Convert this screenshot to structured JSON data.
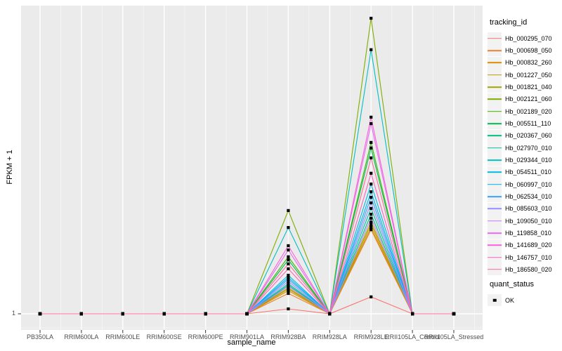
{
  "figure": {
    "y_axis_title": "FPKM + 1",
    "x_axis_title": "sample_name",
    "y_tick_label": "1",
    "legend": {
      "tracking_title": "tracking_id",
      "quant_title": "quant_status",
      "quant_items": [
        {
          "label": "OK",
          "marker": "black-square"
        }
      ]
    }
  },
  "colors": {
    "panel_bg": "#EBEBEB",
    "grid_major": "#FFFFFF",
    "grid_minor": "rgba(255,255,255,0.55)",
    "tick_mark": "#333333",
    "tick_text": "#4D4D4D",
    "axis_text": "#000000",
    "legend_key_bg": "#F2F2F2",
    "point": "#000000"
  },
  "chart_data": {
    "type": "line",
    "title": "",
    "xlabel": "sample_name",
    "ylabel": "FPKM + 1",
    "legend_position": "right",
    "grid": true,
    "point_marker": "small-black-square",
    "x_categories": [
      "PB350LA",
      "RRIM600LA",
      "RRIM600LE",
      "RRIM600SE",
      "RRIM600PE",
      "RRIM901LA",
      "RRIM928BA",
      "RRIM928LA",
      "RRIM928LE",
      "RRII105LA_Control",
      "RRII105LA_Stressed"
    ],
    "y_axis_note": "Only the tick 'FPKM+1 = 1' is labeled; series values below are estimated as fraction of panel height above the '1' baseline (0 = 1, 1 = panel top).",
    "visible_y_ticks": [
      "1"
    ],
    "quant_status_of_all_points": "OK",
    "series": [
      {
        "name": "Hb_000295_070",
        "color": "#F8766D",
        "values": [
          0,
          0,
          0,
          0,
          0,
          0,
          0.016,
          0,
          0.055,
          0,
          0
        ]
      },
      {
        "name": "Hb_000698_050",
        "color": "#EA8331",
        "values": [
          0,
          0,
          0,
          0,
          0,
          0,
          0.066,
          0,
          0.273,
          0,
          0
        ]
      },
      {
        "name": "Hb_000832_260",
        "color": "#D89000",
        "values": [
          0,
          0,
          0,
          0,
          0,
          0,
          0.075,
          0,
          0.28,
          0,
          0
        ]
      },
      {
        "name": "Hb_001227_050",
        "color": "#C09B00",
        "values": [
          0,
          0,
          0,
          0,
          0,
          0,
          0.08,
          0,
          0.289,
          0,
          0
        ]
      },
      {
        "name": "Hb_001821_040",
        "color": "#A3A500",
        "values": [
          0,
          0,
          0,
          0,
          0,
          0,
          0.084,
          0,
          0.298,
          0,
          0
        ]
      },
      {
        "name": "Hb_002121_060",
        "color": "#7CAE00",
        "values": [
          0,
          0,
          0,
          0,
          0,
          0,
          0.335,
          0,
          0.959,
          0,
          0
        ]
      },
      {
        "name": "Hb_002189_020",
        "color": "#39B600",
        "values": [
          0,
          0,
          0,
          0,
          0,
          0,
          0.185,
          0,
          0.556,
          0,
          0
        ]
      },
      {
        "name": "Hb_005511_110",
        "color": "#00BB4E",
        "values": [
          0,
          0,
          0,
          0,
          0,
          0,
          0.175,
          0,
          0.538,
          0,
          0
        ]
      },
      {
        "name": "Hb_020367_060",
        "color": "#00BF7D",
        "values": [
          0,
          0,
          0,
          0,
          0,
          0,
          0.093,
          0,
          0.323,
          0,
          0
        ]
      },
      {
        "name": "Hb_027970_010",
        "color": "#00C1A3",
        "values": [
          0,
          0,
          0,
          0,
          0,
          0,
          0.098,
          0,
          0.342,
          0,
          0
        ]
      },
      {
        "name": "Hb_029344_010",
        "color": "#00BFC4",
        "values": [
          0,
          0,
          0,
          0,
          0,
          0,
          0.28,
          0,
          0.857,
          0,
          0
        ]
      },
      {
        "name": "Hb_054511_010",
        "color": "#00BAE0",
        "values": [
          0,
          0,
          0,
          0,
          0,
          0,
          0.125,
          0,
          0.421,
          0,
          0
        ]
      },
      {
        "name": "Hb_060997_010",
        "color": "#00B0F6",
        "values": [
          0,
          0,
          0,
          0,
          0,
          0,
          0.118,
          0,
          0.396,
          0,
          0
        ]
      },
      {
        "name": "Hb_062534_010",
        "color": "#35A2FF",
        "values": [
          0,
          0,
          0,
          0,
          0,
          0,
          0.112,
          0,
          0.378,
          0,
          0
        ]
      },
      {
        "name": "Hb_085603_010",
        "color": "#9590FF",
        "values": [
          0,
          0,
          0,
          0,
          0,
          0,
          0.105,
          0,
          0.36,
          0,
          0
        ]
      },
      {
        "name": "Hb_109050_010",
        "color": "#C77CFF",
        "values": [
          0,
          0,
          0,
          0,
          0,
          0,
          0.089,
          0,
          0.31,
          0,
          0
        ]
      },
      {
        "name": "Hb_119858_010",
        "color": "#E76BF3",
        "values": [
          0,
          0,
          0,
          0,
          0,
          0,
          0.207,
          0,
          0.617,
          0,
          0
        ]
      },
      {
        "name": "Hb_141689_020",
        "color": "#FA62DB",
        "values": [
          0,
          0,
          0,
          0,
          0,
          0,
          0.221,
          0,
          0.638,
          0,
          0
        ]
      },
      {
        "name": "Hb_146757_010",
        "color": "#FF62BC",
        "values": [
          0,
          0,
          0,
          0,
          0,
          0,
          0.146,
          0,
          0.456,
          0,
          0
        ]
      },
      {
        "name": "Hb_186580_020",
        "color": "#FF6A98",
        "values": [
          0,
          0,
          0,
          0,
          0,
          0,
          0.162,
          0,
          0.506,
          0,
          0
        ]
      }
    ]
  }
}
